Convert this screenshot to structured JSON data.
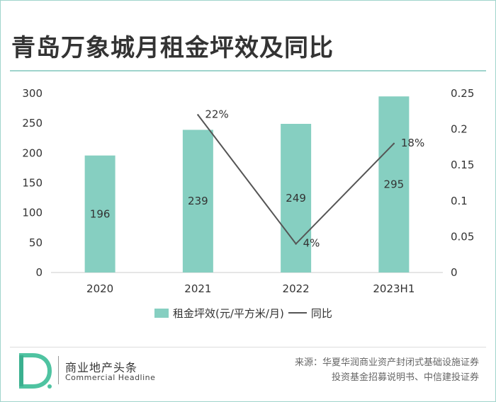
{
  "title": "青岛万象城月租金坪效及同比",
  "chart_data": {
    "type": "bar",
    "categories": [
      "2020",
      "2021",
      "2022",
      "2023H1"
    ],
    "series": [
      {
        "name": "租金坪效(元/平方米/月)",
        "type": "bar",
        "axis": "left",
        "values": [
          196,
          239,
          249,
          295
        ],
        "labels": [
          "196",
          "239",
          "249",
          "295"
        ]
      },
      {
        "name": "同比",
        "type": "line",
        "axis": "right",
        "values": [
          null,
          0.22,
          0.04,
          0.18
        ],
        "labels": [
          "",
          "22%",
          "4%",
          "18%"
        ]
      }
    ],
    "y_left": {
      "lim": [
        0,
        300
      ],
      "ticks": [
        "0",
        "50",
        "100",
        "150",
        "200",
        "250",
        "300"
      ]
    },
    "y_right": {
      "lim": [
        0,
        0.25
      ],
      "ticks": [
        "0",
        "0.05",
        "0.1",
        "0.15",
        "0.2",
        "0.25"
      ]
    },
    "grid": false,
    "legend_position": "bottom",
    "colors": {
      "bar": "#86cfc1",
      "line": "#555555",
      "accent": "#9fd4cc"
    }
  },
  "legend": {
    "bar_label": "租金坪效(元/平方米/月)",
    "line_label": "同比"
  },
  "brand": {
    "name_cn": "商业地产头条",
    "name_en": "Commercial Headline",
    "logo_letter": "D"
  },
  "source": {
    "line1": "来源：华夏华润商业资产封闭式基础设施证券",
    "line2": "投资基金招募说明书、中信建投证券"
  }
}
